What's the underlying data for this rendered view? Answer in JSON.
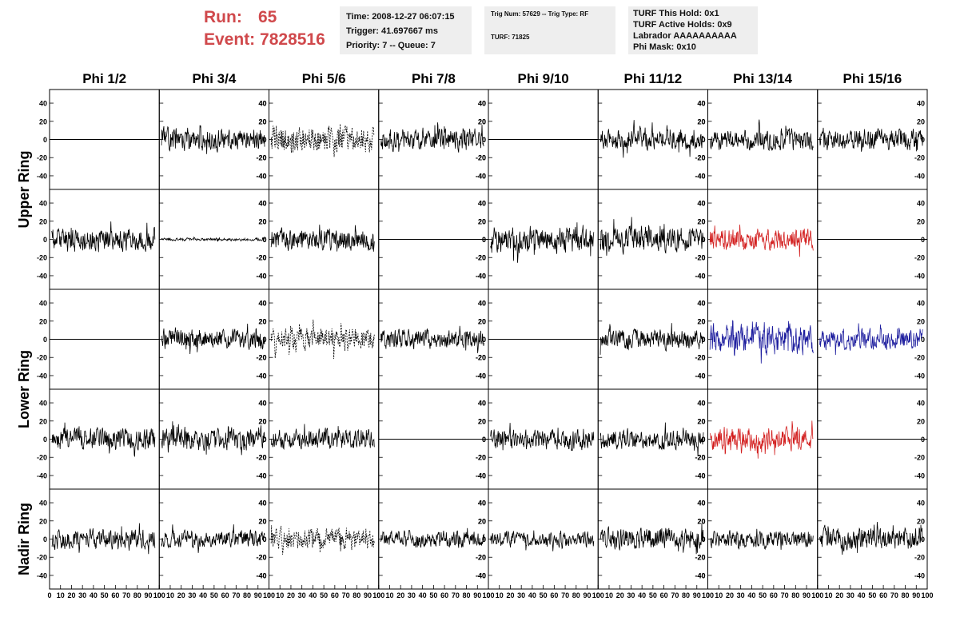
{
  "header": {
    "run_label": "Run:",
    "run_value": "65",
    "event_label": "Event:",
    "event_value": "7828516",
    "run_color": "#d0494c"
  },
  "info_time": {
    "time": "Time: 2008-12-27 06:07:15",
    "trigger": "Trigger: 41.697667 ms",
    "priority": "Priority: 7 -- Queue: 7"
  },
  "info_trig": {
    "trig": "Trig Num: 57629 -- Trig Type: RF",
    "turf": "TURF: 71825"
  },
  "info_turf": {
    "hold": "TURF This Hold: 0x1",
    "active": "TURF Active Holds: 0x9",
    "labrador": "Labrador AAAAAAAAAA",
    "phimask": "Phi Mask: 0x10"
  },
  "chart_data": {
    "type": "line",
    "columns": [
      "Phi 1/2",
      "Phi 3/4",
      "Phi 5/6",
      "Phi 7/8",
      "Phi 9/10",
      "Phi 11/12",
      "Phi 13/14",
      "Phi 15/16"
    ],
    "ring_labels": [
      "Upper Ring",
      "Lower Ring",
      "Nadir Ring"
    ],
    "rows": 5,
    "x_range": [
      0,
      100
    ],
    "y_range": [
      -55,
      55
    ],
    "y_ticks": [
      -40,
      -20,
      0,
      20,
      40
    ],
    "x_ticks": [
      0,
      10,
      20,
      30,
      40,
      50,
      60,
      70,
      80,
      90,
      100
    ],
    "x_tick_labels": [
      "0",
      "10",
      "20",
      "30",
      "40",
      "50",
      "60",
      "70",
      "80",
      "90",
      "100"
    ],
    "colors": {
      "black": "#000000",
      "red": "#d32020",
      "blue": "#1d1d9e"
    },
    "panels": [
      [
        {
          "kind": "flat"
        },
        {
          "kind": "noise",
          "amp": 16,
          "seed": 11
        },
        {
          "kind": "dashed",
          "amp": 19,
          "seed": 12
        },
        {
          "kind": "noise",
          "amp": 16,
          "seed": 13
        },
        {
          "kind": "flat"
        },
        {
          "kind": "noise",
          "amp": 14,
          "seed": 15
        },
        {
          "kind": "noise",
          "amp": 15,
          "seed": 16
        },
        {
          "kind": "noise",
          "amp": 15,
          "seed": 17
        }
      ],
      [
        {
          "kind": "noise",
          "amp": 17,
          "seed": 21
        },
        {
          "kind": "noise",
          "amp": 2,
          "seed": 22
        },
        {
          "kind": "noise",
          "amp": 15,
          "seed": 23
        },
        {
          "kind": "flat"
        },
        {
          "kind": "noise",
          "amp": 19,
          "seed": 25
        },
        {
          "kind": "noise",
          "amp": 18,
          "seed": 26
        },
        {
          "kind": "noise",
          "amp": 15,
          "seed": 27,
          "color": "red"
        },
        {
          "kind": "flat"
        }
      ],
      [
        {
          "kind": "flat"
        },
        {
          "kind": "noise",
          "amp": 14,
          "seed": 32
        },
        {
          "kind": "dashed",
          "amp": 16,
          "seed": 33
        },
        {
          "kind": "noise",
          "amp": 13,
          "seed": 34
        },
        {
          "kind": "flat"
        },
        {
          "kind": "noise",
          "amp": 14,
          "seed": 36
        },
        {
          "kind": "noise",
          "amp": 21,
          "seed": 37,
          "color": "blue"
        },
        {
          "kind": "noise",
          "amp": 14,
          "seed": 38,
          "color": "blue"
        }
      ],
      [
        {
          "kind": "noise",
          "amp": 15,
          "seed": 41
        },
        {
          "kind": "noise",
          "amp": 15,
          "seed": 42
        },
        {
          "kind": "noise",
          "amp": 14,
          "seed": 43
        },
        {
          "kind": "flat"
        },
        {
          "kind": "noise",
          "amp": 14,
          "seed": 45
        },
        {
          "kind": "noise",
          "amp": 14,
          "seed": 46
        },
        {
          "kind": "noise",
          "amp": 16,
          "seed": 47,
          "color": "red"
        },
        {
          "kind": "flat"
        }
      ],
      [
        {
          "kind": "noise",
          "amp": 14,
          "seed": 51
        },
        {
          "kind": "noise",
          "amp": 12,
          "seed": 52
        },
        {
          "kind": "dashed",
          "amp": 14,
          "seed": 53
        },
        {
          "kind": "noise",
          "amp": 12,
          "seed": 54
        },
        {
          "kind": "noise",
          "amp": 11,
          "seed": 55
        },
        {
          "kind": "noise",
          "amp": 15,
          "seed": 56
        },
        {
          "kind": "noise",
          "amp": 12,
          "seed": 57
        },
        {
          "kind": "noise",
          "amp": 15,
          "seed": 58
        }
      ]
    ]
  }
}
